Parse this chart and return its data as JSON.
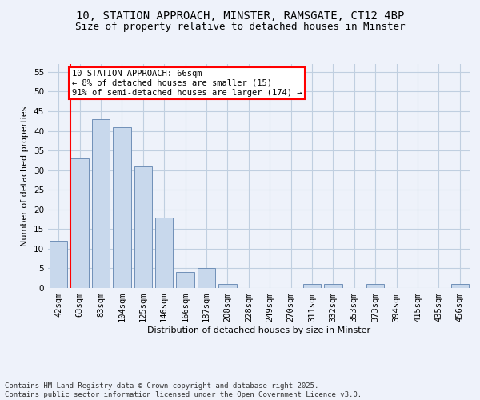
{
  "title1": "10, STATION APPROACH, MINSTER, RAMSGATE, CT12 4BP",
  "title2": "Size of property relative to detached houses in Minster",
  "xlabel": "Distribution of detached houses by size in Minster",
  "ylabel": "Number of detached properties",
  "categories": [
    "42sqm",
    "63sqm",
    "83sqm",
    "104sqm",
    "125sqm",
    "146sqm",
    "166sqm",
    "187sqm",
    "208sqm",
    "228sqm",
    "249sqm",
    "270sqm",
    "311sqm",
    "332sqm",
    "353sqm",
    "373sqm",
    "394sqm",
    "415sqm",
    "435sqm",
    "456sqm"
  ],
  "values": [
    12,
    33,
    43,
    41,
    31,
    18,
    4,
    5,
    1,
    0,
    0,
    0,
    1,
    1,
    0,
    1,
    0,
    0,
    0,
    1
  ],
  "bar_color": "#c8d8ec",
  "bar_edge_color": "#7090b8",
  "vline_color": "red",
  "annotation_text": "10 STATION APPROACH: 66sqm\n← 8% of detached houses are smaller (15)\n91% of semi-detached houses are larger (174) →",
  "annotation_box_facecolor": "white",
  "annotation_box_edgecolor": "red",
  "ylim": [
    0,
    57
  ],
  "yticks": [
    0,
    5,
    10,
    15,
    20,
    25,
    30,
    35,
    40,
    45,
    50,
    55
  ],
  "grid_color": "#c0cfe0",
  "background_color": "#eef2fa",
  "footer": "Contains HM Land Registry data © Crown copyright and database right 2025.\nContains public sector information licensed under the Open Government Licence v3.0.",
  "title_fontsize": 10,
  "subtitle_fontsize": 9,
  "axis_label_fontsize": 8,
  "tick_fontsize": 7.5,
  "annotation_fontsize": 7.5,
  "footer_fontsize": 6.5
}
